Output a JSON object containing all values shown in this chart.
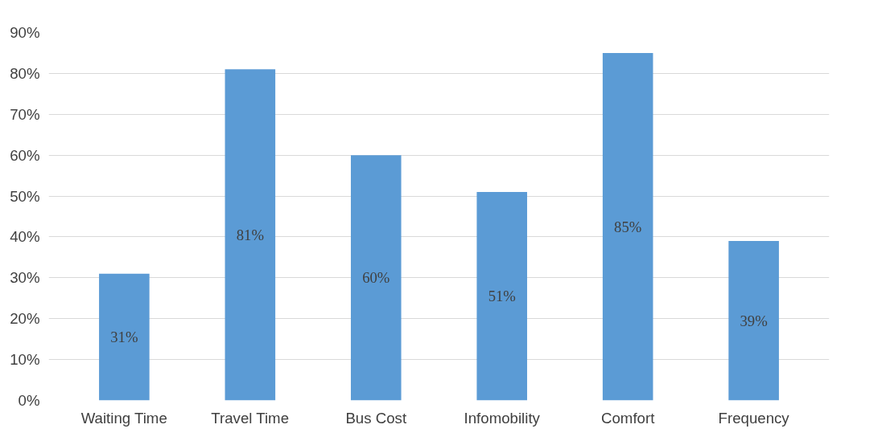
{
  "chart_data": {
    "type": "bar",
    "categories": [
      "Waiting Time",
      "Travel Time",
      "Bus Cost",
      "Infomobility",
      "Comfort",
      "Frequency"
    ],
    "values": [
      31,
      81,
      60,
      51,
      85,
      39
    ],
    "color": "#5b9bd5",
    "value_labels": [
      "31%",
      "81%",
      "60%",
      "51%",
      "85%",
      "39%"
    ],
    "ylim": [
      0,
      90
    ],
    "yticks": [
      {
        "value": 0,
        "label": "0%"
      },
      {
        "value": 10,
        "label": "10%"
      },
      {
        "value": 20,
        "label": "20%"
      },
      {
        "value": 30,
        "label": "30%"
      },
      {
        "value": 40,
        "label": "40%"
      },
      {
        "value": 50,
        "label": "50%"
      },
      {
        "value": 60,
        "label": "60%"
      },
      {
        "value": 70,
        "label": "70%"
      },
      {
        "value": 80,
        "label": "80%"
      },
      {
        "value": 90,
        "label": "90%"
      }
    ],
    "grid": "y"
  }
}
